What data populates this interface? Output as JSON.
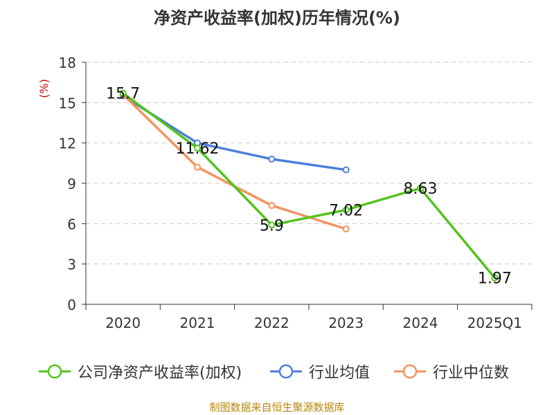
{
  "chart_data": {
    "type": "line",
    "title": "净资产收益率(加权)历年情况(%)",
    "ylabel": "(%)",
    "xlabel": "",
    "categories": [
      "2020",
      "2021",
      "2022",
      "2023",
      "2024",
      "2025Q1"
    ],
    "ylim": [
      0,
      18
    ],
    "yticks": [
      0,
      3,
      6,
      9,
      12,
      15,
      18
    ],
    "grid": true,
    "legend_position": "bottom",
    "series": [
      {
        "name": "公司净资产收益率(加权)",
        "color": "#52c41a",
        "values": [
          15.7,
          11.62,
          5.9,
          7.02,
          8.63,
          1.97
        ],
        "labels_shown": true
      },
      {
        "name": "行业均值",
        "color": "#4a7fdb",
        "values": [
          15.5,
          12.0,
          10.8,
          10.0,
          null,
          null
        ],
        "labels_shown": false
      },
      {
        "name": "行业中位数",
        "color": "#f5925e",
        "values": [
          15.6,
          10.2,
          7.35,
          5.6,
          null,
          null
        ],
        "labels_shown": false
      }
    ],
    "data_labels": [
      "15.7",
      "11.62",
      "5.9",
      "7.02",
      "8.63",
      "1.97"
    ]
  },
  "source": "制图数据来自恒生聚源数据库"
}
